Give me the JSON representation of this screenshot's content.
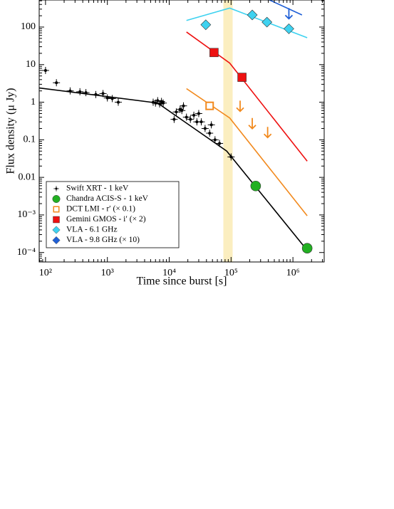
{
  "chart_data": {
    "type": "scatter",
    "xlabel": "Time since burst [s]",
    "ylabel": "Flux density  (μ Jy)",
    "xscale": "log",
    "yscale": "log",
    "xlim": [
      79,
      3200000
    ],
    "ylim": [
      5.6e-05,
      525
    ],
    "xticks": [
      {
        "value": 100,
        "label": "10²"
      },
      {
        "value": 1000,
        "label": "10³"
      },
      {
        "value": 10000,
        "label": "10⁴"
      },
      {
        "value": 100000,
        "label": "10⁵"
      },
      {
        "value": 1000000,
        "label": "10⁶"
      }
    ],
    "yticks": [
      {
        "value": 0.0001,
        "label": "10⁻⁴"
      },
      {
        "value": 0.001,
        "label": "10⁻³"
      },
      0.01,
      0.1,
      1,
      10,
      100
    ],
    "band": [
      75000,
      106000
    ],
    "band_color": "#fbeec0",
    "series": [
      {
        "name": "Swift XRT - 1 keV",
        "color": "#000000",
        "marker": "errorpoint",
        "x": [
          100,
          150,
          250,
          360,
          450,
          650,
          850,
          1000,
          1200,
          1500,
          5500,
          6000,
          6500,
          7000,
          7500,
          8000,
          12000,
          13000,
          15000,
          16000,
          17000,
          19000,
          22000,
          25000,
          28000,
          30000,
          33000,
          38000,
          45000,
          48000,
          55000,
          65000,
          100000
        ],
        "values": [
          7,
          3.3,
          2.0,
          1.9,
          1.8,
          1.6,
          1.7,
          1.3,
          1.25,
          1.0,
          1.0,
          0.95,
          1.1,
          0.9,
          1.05,
          0.95,
          0.35,
          0.55,
          0.65,
          0.6,
          0.8,
          0.4,
          0.35,
          0.45,
          0.3,
          0.5,
          0.3,
          0.2,
          0.15,
          0.25,
          0.1,
          0.08,
          0.035
        ]
      },
      {
        "name": "Chandra ACIS-S - 1 keV",
        "color": "#22b022",
        "marker": "circle",
        "x": [
          250000,
          1700000
        ],
        "values": [
          0.0059,
          0.00013
        ]
      },
      {
        "name": "DCT LMI - r′  (× 0.1)",
        "color": "#f28a1e",
        "marker": "open-square",
        "x": [
          45000
        ],
        "values": [
          0.8
        ],
        "limits": {
          "x": [
            140000,
            220000,
            390000
          ],
          "values": [
            1.1,
            0.38,
            0.22
          ]
        }
      },
      {
        "name": "Gemini GMOS - i′  (× 2)",
        "color": "#ee1111",
        "marker": "square",
        "x": [
          53000,
          150000
        ],
        "values": [
          21,
          4.6
        ]
      },
      {
        "name": "VLA - 6.1 GHz",
        "color": "#3ed2f0",
        "marker": "diamond",
        "x": [
          39000,
          220000,
          380000,
          860000
        ],
        "values": [
          115,
          210,
          135,
          90
        ]
      },
      {
        "name": "VLA - 9.8 GHz   (× 10)",
        "color": "#1f5fd6",
        "marker": "diamond",
        "x": [],
        "values": [],
        "limits": {
          "x": [
            860000
          ],
          "values": [
            320
          ]
        }
      }
    ],
    "models": [
      {
        "color": "#000000",
        "x": [
          79,
          6500,
          85000,
          1600000
        ],
        "values": [
          2.4,
          0.95,
          0.05,
          0.00013
        ]
      },
      {
        "color": "#f28a1e",
        "x": [
          19000,
          95000,
          1700000
        ],
        "values": [
          2.3,
          0.38,
          0.00095
        ]
      },
      {
        "color": "#ee1111",
        "x": [
          19000,
          95000,
          1700000
        ],
        "values": [
          74,
          11,
          0.027
        ]
      },
      {
        "color": "#3ed2f0",
        "x": [
          19000,
          95000,
          1700000
        ],
        "values": [
          150,
          320,
          52
        ]
      },
      {
        "color": "#1f5fd6",
        "x": [
          350000,
          1400000
        ],
        "values": [
          600,
          210
        ]
      }
    ]
  }
}
